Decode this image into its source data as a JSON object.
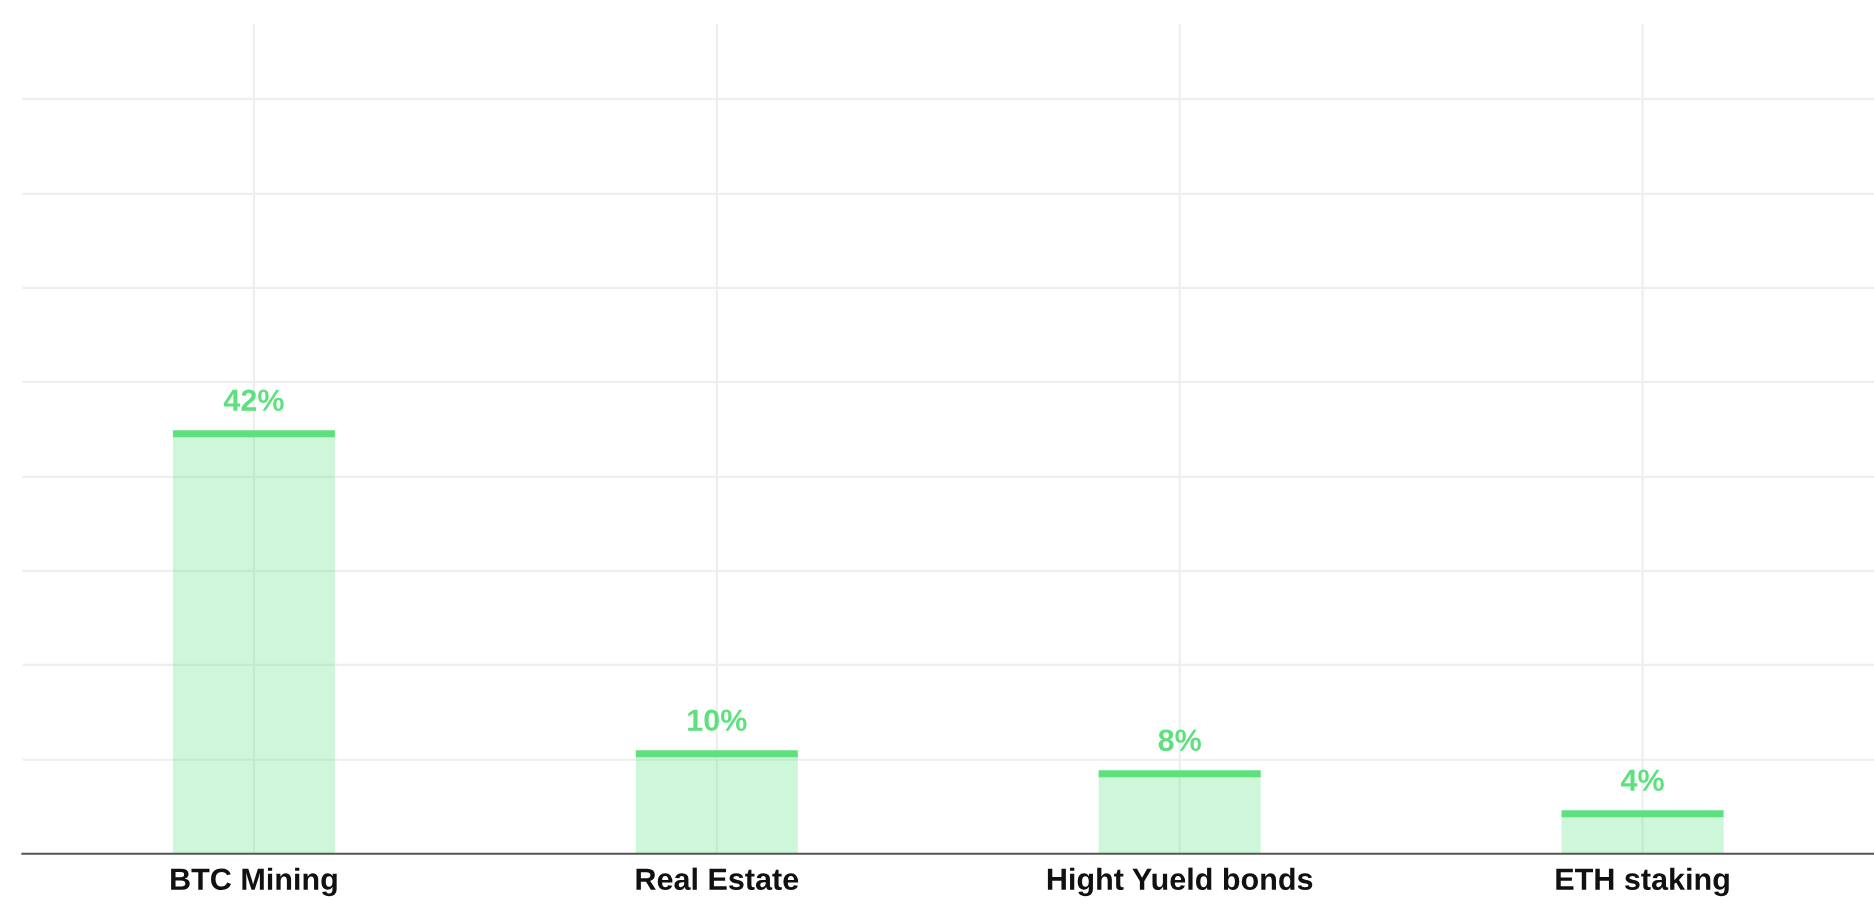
{
  "chart_data": {
    "type": "bar",
    "categories": [
      "BTC Mining",
      "Real Estate",
      "Hight Yueld bonds",
      "ETH staking"
    ],
    "values": [
      42,
      10,
      8,
      4
    ],
    "value_labels": [
      "42%",
      "10%",
      "8%",
      "4%"
    ],
    "color": "#5ee07f",
    "ylim": [
      0,
      83
    ],
    "yticks": [
      {
        "value": 9.4,
        "label": null
      },
      {
        "value": 18.9,
        "label": null
      },
      {
        "value": 28.3,
        "label": null
      },
      {
        "value": 37.7,
        "label": null
      },
      {
        "value": 47.2,
        "label": null
      },
      {
        "value": 56.6,
        "label": null
      },
      {
        "value": 66.0,
        "label": null
      },
      {
        "value": 75.5,
        "label": null
      }
    ],
    "tick_labels": "x",
    "grid": true,
    "legend": false
  }
}
